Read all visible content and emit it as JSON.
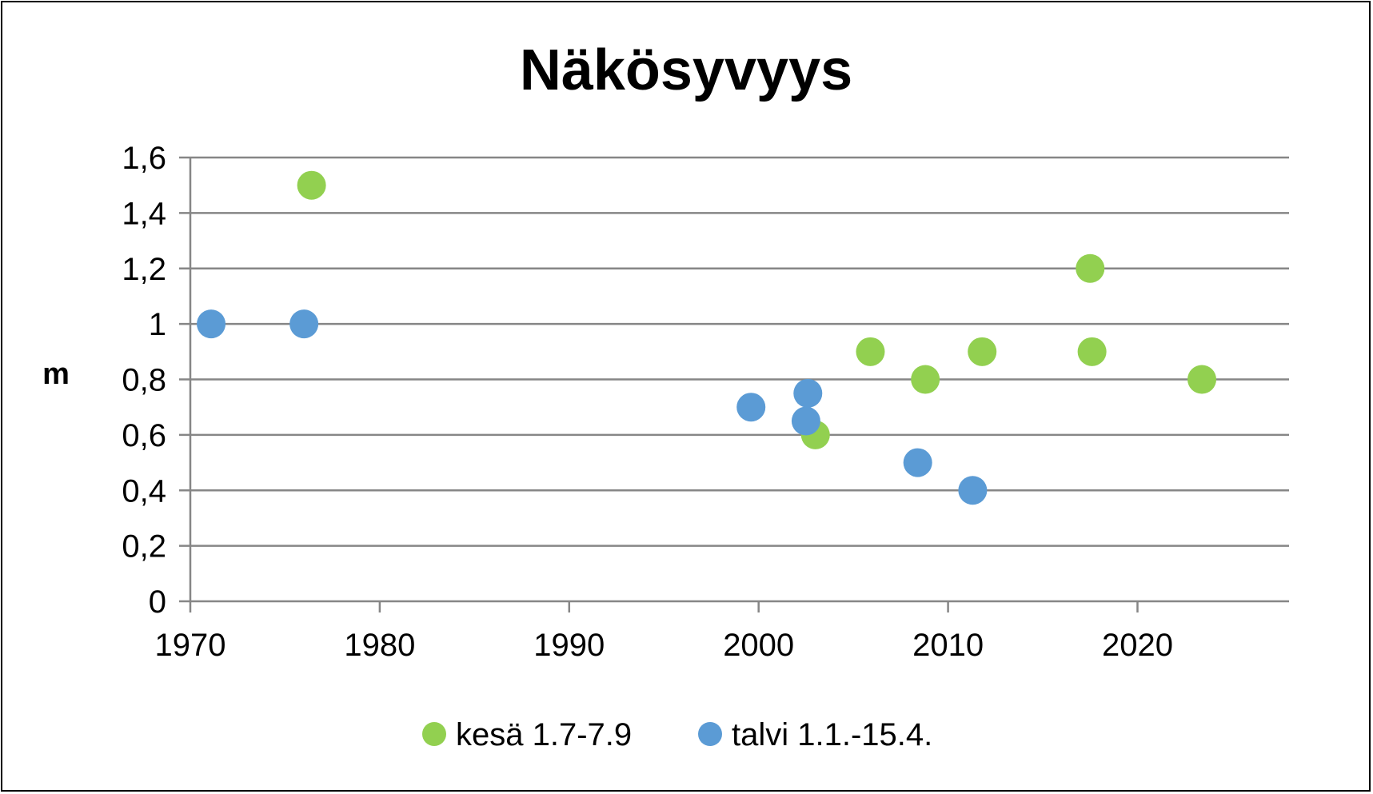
{
  "chart_data": {
    "type": "scatter",
    "title": "Näkösyvyys",
    "xlabel": "",
    "ylabel": "m",
    "xlim": [
      1970,
      2028
    ],
    "ylim": [
      0,
      1.6
    ],
    "x_ticks": [
      1970,
      1980,
      1990,
      2000,
      2010,
      2020
    ],
    "y_ticks": [
      {
        "value": 0,
        "label": "0"
      },
      {
        "value": 0.2,
        "label": "0,2"
      },
      {
        "value": 0.4,
        "label": "0,4"
      },
      {
        "value": 0.6,
        "label": "0,6"
      },
      {
        "value": 0.8,
        "label": "0,8"
      },
      {
        "value": 1.0,
        "label": "1"
      },
      {
        "value": 1.2,
        "label": "1,2"
      },
      {
        "value": 1.4,
        "label": "1,4"
      },
      {
        "value": 1.6,
        "label": "1,6"
      }
    ],
    "grid": "horizontal",
    "legend_position": "bottom",
    "series": [
      {
        "name": "kesä 1.7-7.9",
        "color": "#92D050",
        "points": [
          {
            "x": 1976.4,
            "y": 1.5
          },
          {
            "x": 2003.0,
            "y": 0.6
          },
          {
            "x": 2005.9,
            "y": 0.9
          },
          {
            "x": 2008.8,
            "y": 0.8
          },
          {
            "x": 2011.8,
            "y": 0.9
          },
          {
            "x": 2017.5,
            "y": 1.2
          },
          {
            "x": 2017.6,
            "y": 0.9
          },
          {
            "x": 2023.4,
            "y": 0.8
          }
        ]
      },
      {
        "name": "talvi 1.1.-15.4.",
        "color": "#5B9BD5",
        "points": [
          {
            "x": 1971.1,
            "y": 1.0
          },
          {
            "x": 1976.0,
            "y": 1.0
          },
          {
            "x": 1999.6,
            "y": 0.7
          },
          {
            "x": 2002.5,
            "y": 0.65
          },
          {
            "x": 2002.6,
            "y": 0.75
          },
          {
            "x": 2008.4,
            "y": 0.5
          },
          {
            "x": 2011.3,
            "y": 0.4
          }
        ]
      }
    ]
  }
}
